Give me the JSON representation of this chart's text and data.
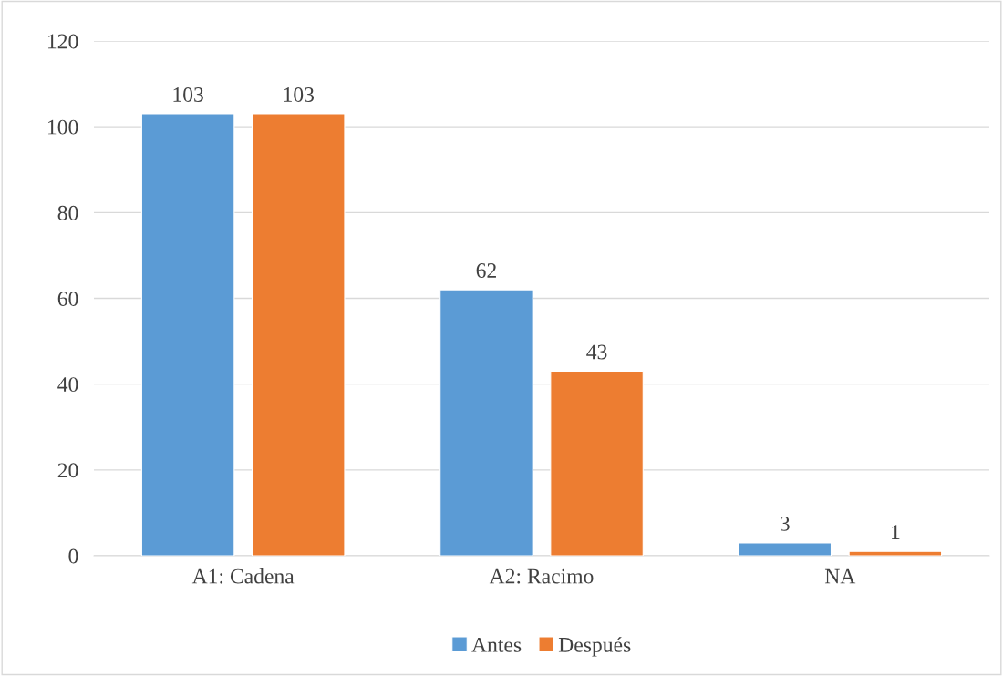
{
  "chart_data": {
    "type": "bar",
    "categories": [
      "A1: Cadena",
      "A2: Racimo",
      "NA"
    ],
    "series": [
      {
        "name": "Antes",
        "color": "#5b9bd5",
        "values": [
          103,
          62,
          3
        ]
      },
      {
        "name": "Después",
        "color": "#ed7d31",
        "values": [
          103,
          43,
          1
        ]
      }
    ],
    "ylim": [
      0,
      120
    ],
    "yticks": [
      0,
      20,
      40,
      60,
      80,
      100,
      120
    ],
    "grid": "y",
    "legend": "bottom",
    "data_labels": true
  }
}
